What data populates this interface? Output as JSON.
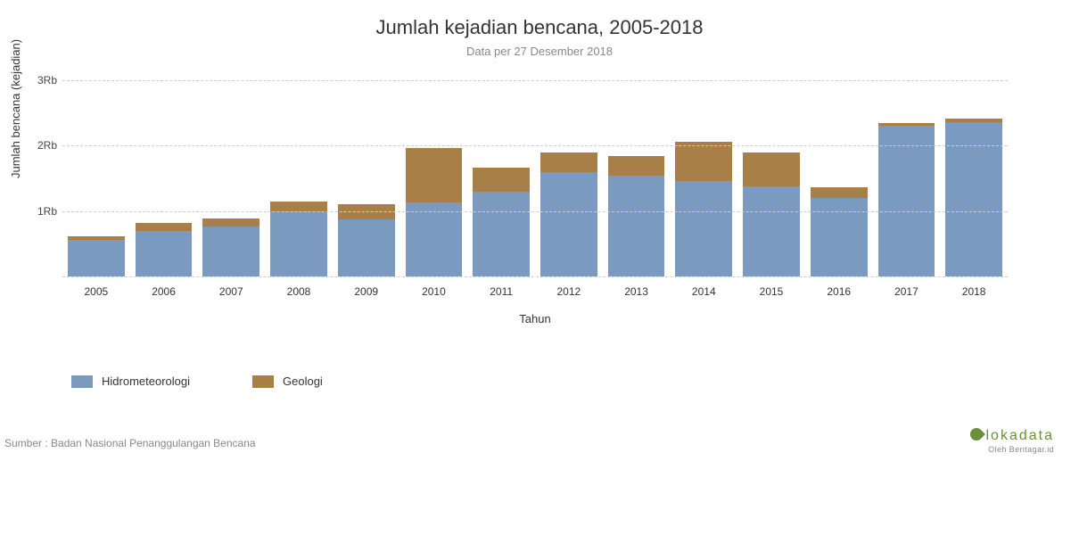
{
  "chart": {
    "type": "stacked-bar",
    "title": "Jumlah kejadian bencana, 2005-2018",
    "subtitle": "Data per 27 Desember 2018",
    "xlabel": "Tahun",
    "ylabel": "Jumlah bencana (kejadian)",
    "background_color": "#ffffff",
    "grid_color": "#cccccc",
    "title_fontsize": 22,
    "subtitle_fontsize": 13,
    "label_fontsize": 13,
    "tick_fontsize": 12,
    "ylim": [
      0,
      3000
    ],
    "ytick_step": 1000,
    "ytick_format_suffix": "Rb",
    "ytick_format_divisor": 1000,
    "bar_width_ratio": 0.84,
    "categories": [
      "2005",
      "2006",
      "2007",
      "2008",
      "2009",
      "2010",
      "2011",
      "2012",
      "2013",
      "2014",
      "2015",
      "2016",
      "2017",
      "2018"
    ],
    "series": [
      {
        "name": "Hidrometeorologi",
        "color": "#7a9bbf",
        "values": [
          560,
          700,
          760,
          1000,
          870,
          1130,
          1300,
          1600,
          1540,
          1460,
          1380,
          1200,
          2300,
          2360
        ]
      },
      {
        "name": "Geologi",
        "color": "#a97f48",
        "values": [
          60,
          120,
          130,
          140,
          230,
          830,
          360,
          300,
          300,
          600,
          520,
          160,
          50,
          60
        ]
      }
    ],
    "legend_position": "bottom-left"
  },
  "source_text": "Sumber : Badan Nasional Penanggulangan Bencana",
  "brand": {
    "name": "lokadata",
    "tagline": "Oleh Beritagar.id",
    "color": "#6a8f3a"
  }
}
